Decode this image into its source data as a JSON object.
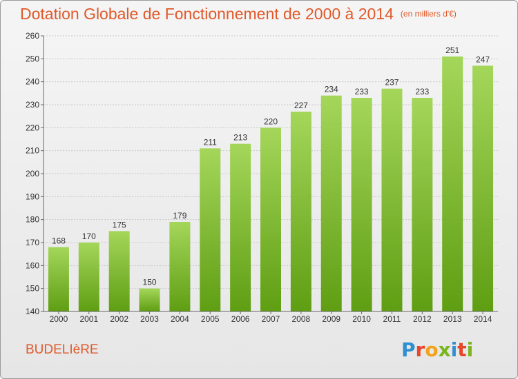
{
  "header": {
    "title": "Dotation Globale de Fonctionnement de 2000 à 2014",
    "subtitle": "(en milliers d'€)"
  },
  "footer": {
    "commune": "BUDELIèRE",
    "logo_letters": [
      "P",
      "r",
      "o",
      "x",
      "i",
      "t",
      "i"
    ],
    "logo_colors": [
      "#2f8fd0",
      "#e8462a",
      "#f3a31b",
      "#7ab51d",
      "#2f8fd0",
      "#e8462a",
      "#7ab51d"
    ]
  },
  "chart_data": {
    "type": "bar",
    "categories": [
      "2000",
      "2001",
      "2002",
      "2003",
      "2004",
      "2005",
      "2006",
      "2007",
      "2008",
      "2009",
      "2010",
      "2011",
      "2012",
      "2013",
      "2014"
    ],
    "values": [
      168,
      170,
      175,
      150,
      179,
      211,
      213,
      220,
      227,
      234,
      233,
      237,
      233,
      251,
      247
    ],
    "ylim": [
      140,
      260
    ],
    "yticks": [
      140,
      150,
      160,
      170,
      180,
      190,
      200,
      210,
      220,
      230,
      240,
      250,
      260
    ],
    "grid": true,
    "bar_color_top": "#a4d65a",
    "bar_color_bottom": "#5f9e13"
  }
}
